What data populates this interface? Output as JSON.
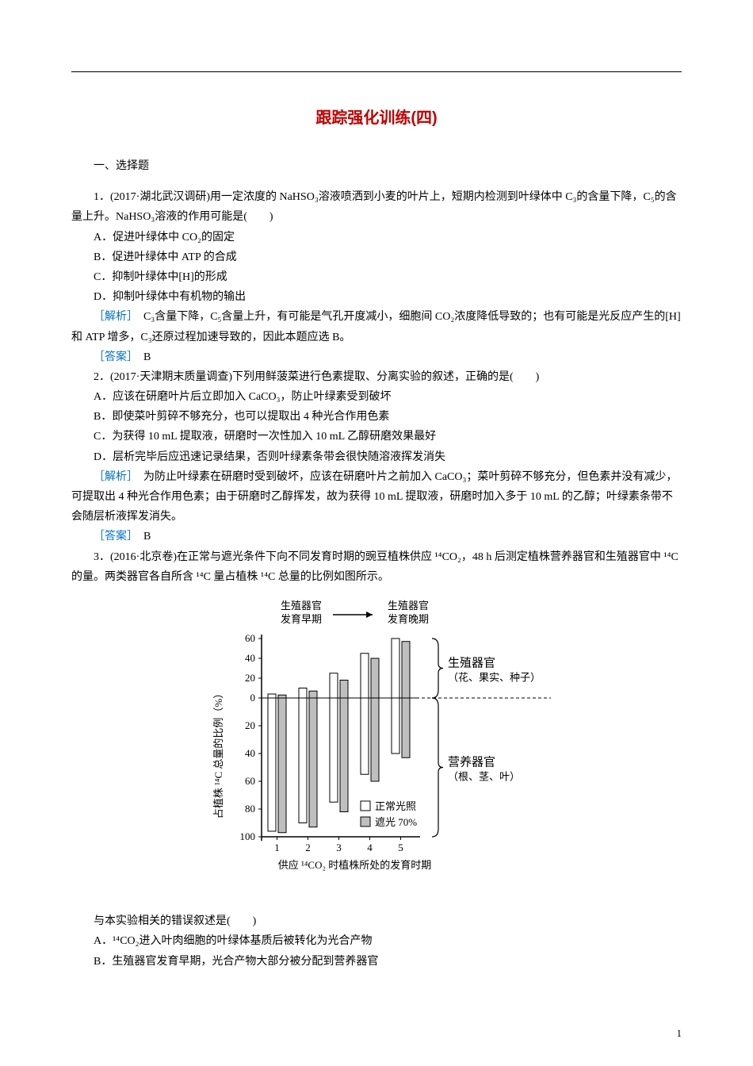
{
  "title": "跟踪强化训练(四)",
  "section1": "一、选择题",
  "q1": {
    "stem_a": "1．(2017·湖北武汉调研)用一定浓度的 NaHSO₃溶液喷洒到小麦的叶片上，短期内检测到叶绿体中 C₃的含量下降，C₅的含量上升。NaHSO₃溶液的作用可能是(　　)",
    "optA": "A．促进叶绿体中 CO₂的固定",
    "optB": "B．促进叶绿体中 ATP 的合成",
    "optC": "C．抑制叶绿体中[H]的形成",
    "optD": "D．抑制叶绿体中有机物的输出",
    "analysis_label": "［解析］",
    "analysis": "　C₃含量下降，C₅含量上升，有可能是气孔开度减小，细胞间 CO₂浓度降低导致的；也有可能是光反应产生的[H]和 ATP 增多，C₃还原过程加速导致的，因此本题应选 B。",
    "answer_label": "［答案］",
    "answer": "　B"
  },
  "q2": {
    "stem_a": "2．(2017·天津期末质量调查)下列用鲜菠菜进行色素提取、分离实验的叙述，正确的是(　　)",
    "optA": "A．应该在研磨叶片后立即加入 CaCO₃，防止叶绿素受到破坏",
    "optB": "B．即使菜叶剪碎不够充分，也可以提取出 4 种光合作用色素",
    "optC": "C．为获得 10 mL 提取液，研磨时一次性加入 10 mL 乙醇研磨效果最好",
    "optD": "D．层析完毕后应迅速记录结果，否则叶绿素条带会很快随溶液挥发消失",
    "analysis_label": "［解析］",
    "analysis": "　为防止叶绿素在研磨时受到破坏，应该在研磨叶片之前加入 CaCO₃；菜叶剪碎不够充分，但色素并没有减少，可提取出 4 种光合作用色素；由于研磨时乙醇挥发，故为获得 10 mL 提取液，研磨时加入多于 10 mL 的乙醇；叶绿素条带不会随层析液挥发消失。",
    "answer_label": "［答案］",
    "answer": "　B"
  },
  "q3": {
    "stem_a": "3．(2016·北京卷)在正常与遮光条件下向不同发育时期的豌豆植株供应 ¹⁴CO₂，48 h 后测定植株营养器官和生殖器官中 ¹⁴C 的量。两类器官各自所含 ¹⁴C 量占植株 ¹⁴C 总量的比例如图所示。",
    "stem_b": "与本实验相关的错误叙述是(　　)",
    "optA": "A．¹⁴CO₂进入叶肉细胞的叶绿体基质后被转化为光合产物",
    "optB": "B．生殖器官发育早期，光合产物大部分被分配到营养器官",
    "figure": {
      "top_left": "生殖器官",
      "top_left2": "发育早期",
      "top_right": "生殖器官",
      "top_right2": "发育晚期",
      "y_label": "占植株 ¹⁴C 总量的比例（%）",
      "x_label": "供应 ¹⁴CO₂ 时植株所处的发育时期",
      "legend_normal": "正常光照",
      "legend_shade": "遮光 70%",
      "side_top": "生殖器官",
      "side_top2": "（花、果实、种子）",
      "side_bot": "营养器官",
      "side_bot2": "（根、茎、叶）",
      "y_ticks_up": [
        60,
        40,
        20,
        0
      ],
      "y_ticks_down": [
        20,
        40,
        60,
        80,
        100
      ],
      "x_ticks": [
        1,
        2,
        3,
        4,
        5
      ],
      "bars_up_normal": [
        4,
        10,
        25,
        45,
        60
      ],
      "bars_up_shade": [
        3,
        7,
        18,
        40,
        57
      ],
      "bars_down_normal": [
        96,
        90,
        75,
        55,
        40
      ],
      "bars_down_shade": [
        97,
        93,
        82,
        60,
        43
      ],
      "color_normal_fill": "#ffffff",
      "color_shade_fill": "#bfbfbf",
      "stroke": "#000000",
      "font_size": 13
    }
  },
  "page_number": "1"
}
